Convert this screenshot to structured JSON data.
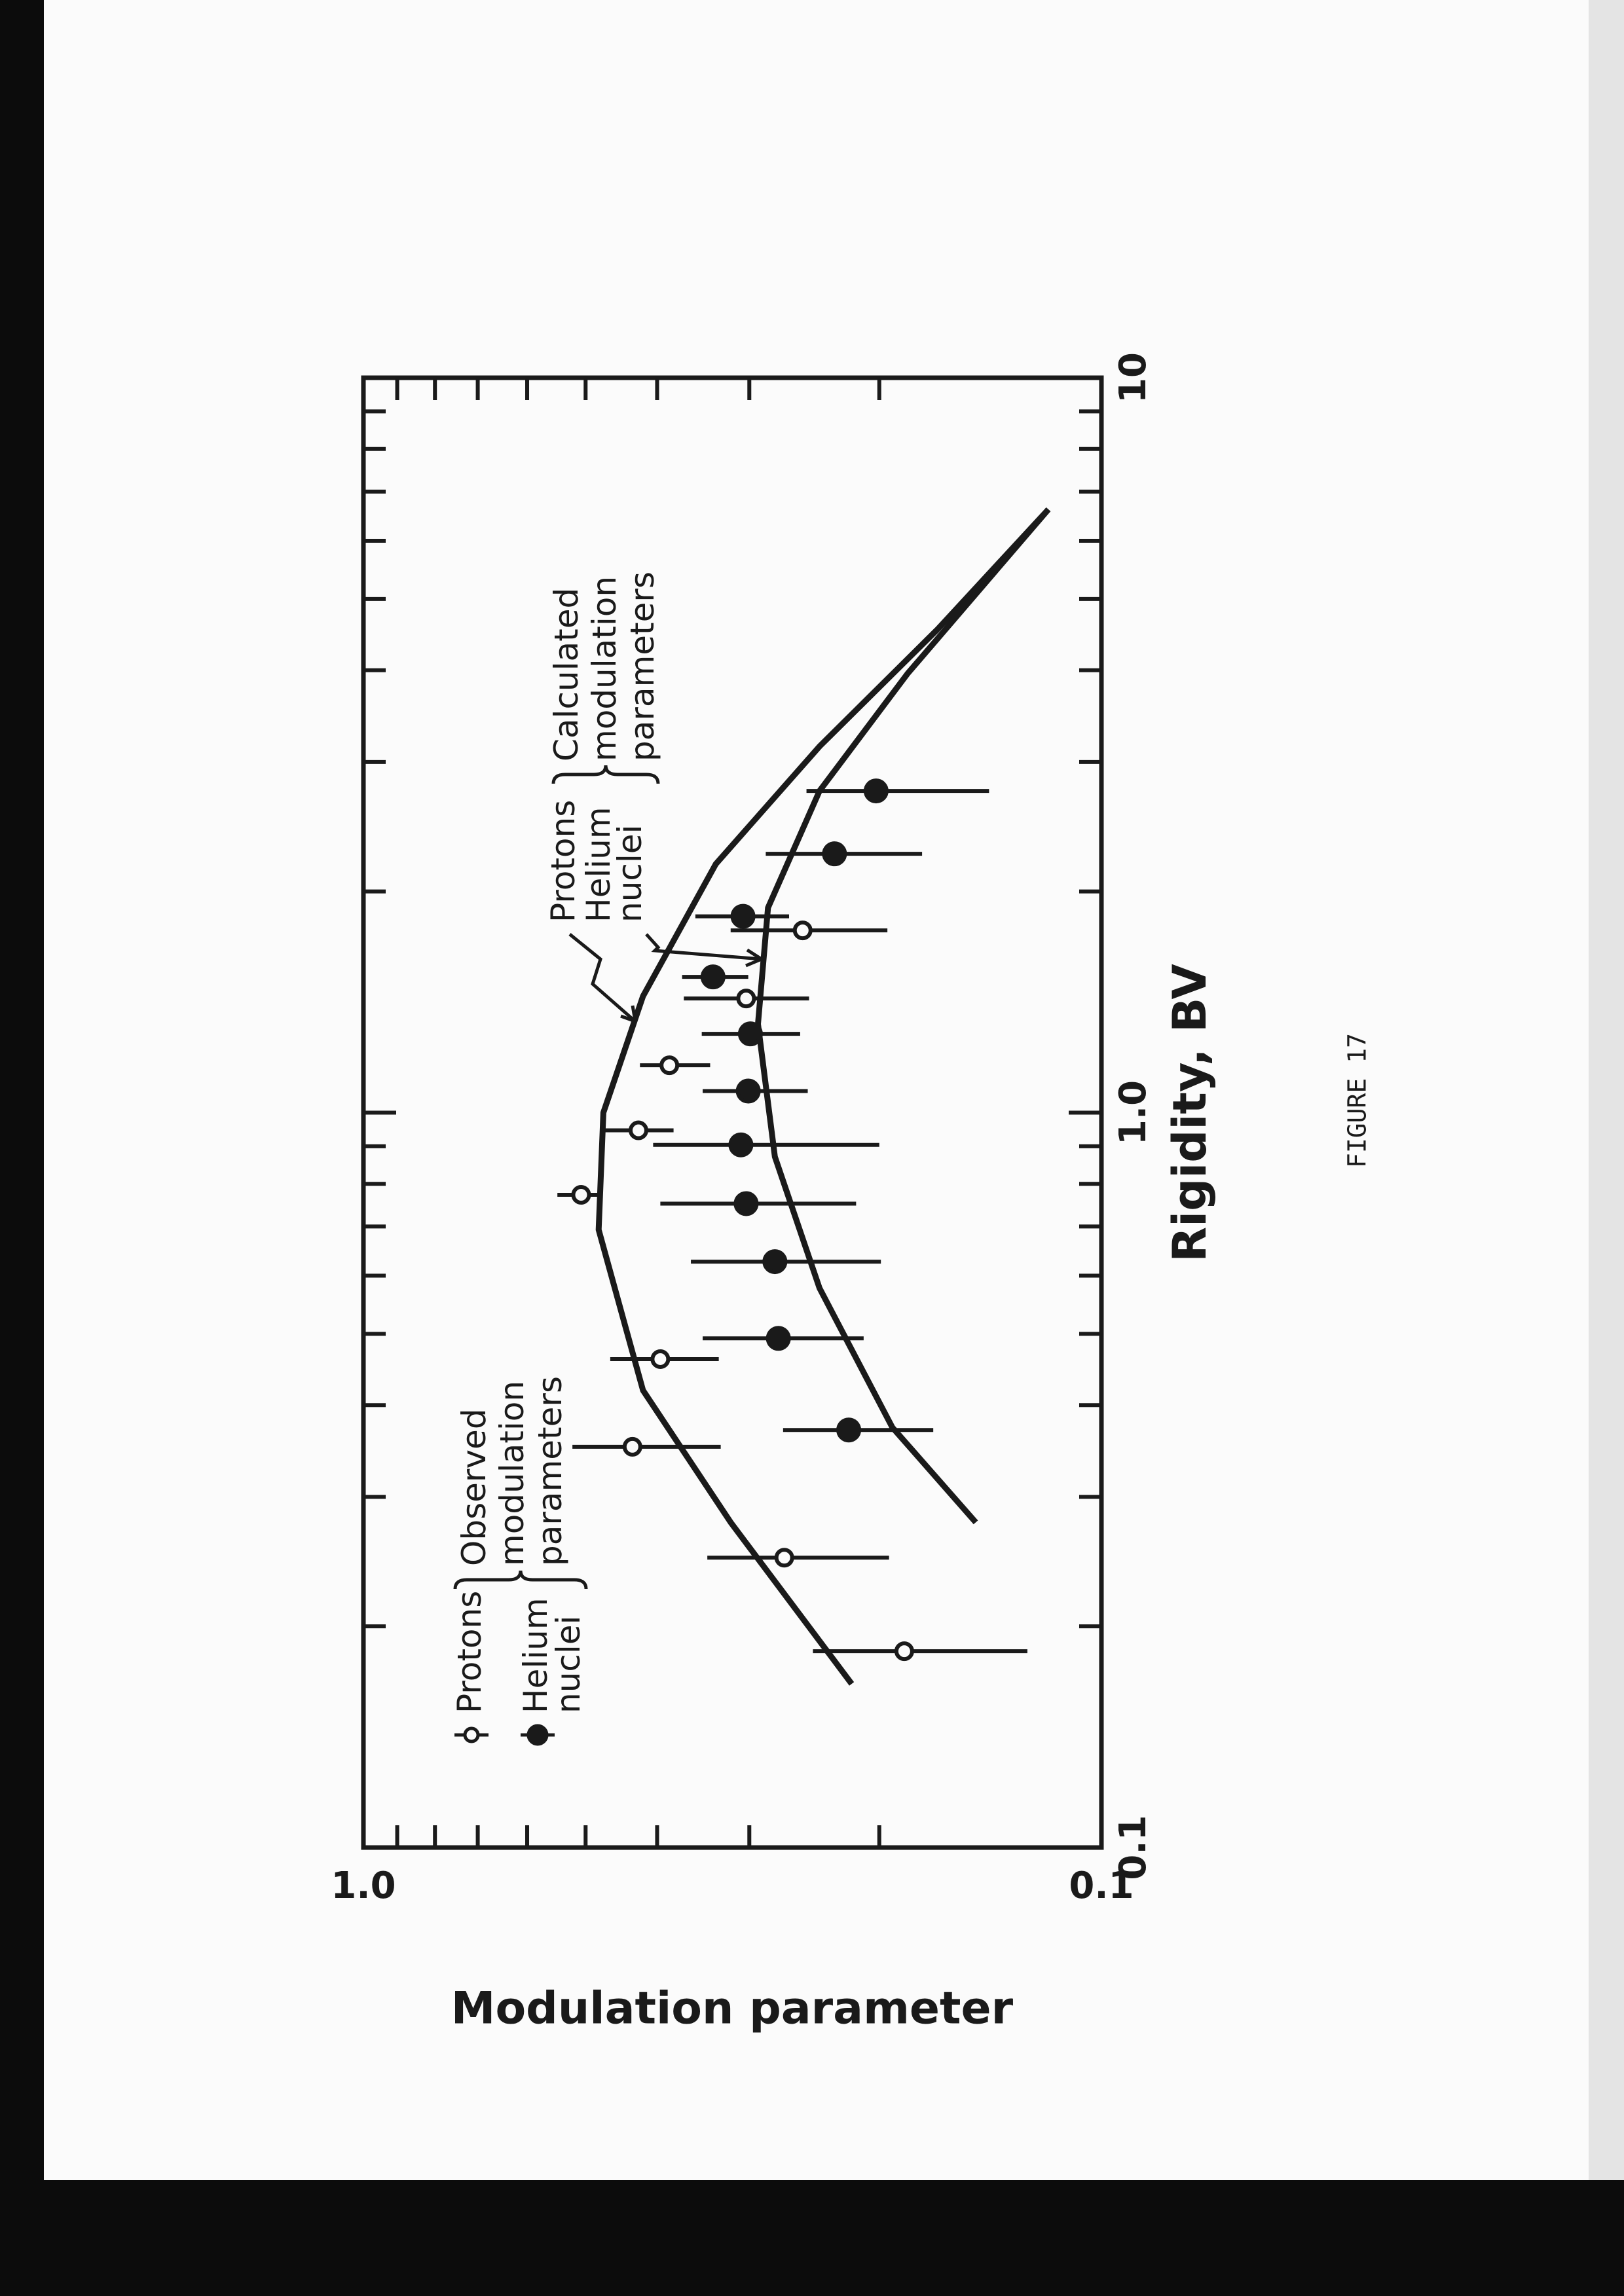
{
  "chart_data": {
    "type": "scatter",
    "x_label": "Rigidity, BV",
    "y_label": "Modulation parameter",
    "xlog": true,
    "ylog": true,
    "xlim": [
      0.1,
      10
    ],
    "ylim": [
      0.1,
      1
    ],
    "xticks": [
      0.1,
      {
        "value": 1,
        "label": "1.0"
      },
      10
    ],
    "yticks": [
      0.1,
      {
        "value": 1,
        "label": "1.0"
      }
    ],
    "x_minor_ticks": [
      0.2,
      0.3,
      0.4,
      0.5,
      0.6,
      0.7,
      0.8,
      0.9,
      2,
      3,
      4,
      5,
      6,
      7,
      8,
      9
    ],
    "y_minor_ticks": [
      0.2,
      0.3,
      0.4,
      0.5,
      0.6,
      0.7,
      0.8,
      0.9
    ],
    "observed_legend_title": "Observed modulation parameters",
    "calculated_legend_title": "Calculated modulation parameters",
    "series": [
      {
        "name": "Protons",
        "marker": "open",
        "color": "#1a1a1a",
        "x": [
          0.185,
          0.248,
          0.351,
          0.462,
          0.773,
          0.946,
          1.16,
          1.43,
          1.77
        ],
        "values": [
          0.185,
          0.269,
          0.432,
          0.396,
          0.507,
          0.424,
          0.385,
          0.303,
          0.254
        ],
        "lower": [
          0.126,
          0.194,
          0.328,
          0.33,
          0.48,
          0.38,
          0.339,
          0.249,
          0.195
        ],
        "upper": [
          0.246,
          0.342,
          0.521,
          0.463,
          0.546,
          0.476,
          0.422,
          0.368,
          0.318
        ]
      },
      {
        "name": "Helium nuclei",
        "marker": "filled",
        "color": "#1a1a1a",
        "x": [
          0.37,
          0.493,
          0.627,
          0.752,
          0.904,
          1.07,
          1.28,
          1.53,
          1.85,
          2.25,
          2.74
        ],
        "values": [
          0.22,
          0.274,
          0.277,
          0.303,
          0.308,
          0.301,
          0.299,
          0.336,
          0.306,
          0.23,
          0.202
        ],
        "lower": [
          0.169,
          0.21,
          0.199,
          0.215,
          0.2,
          0.25,
          0.256,
          0.301,
          0.265,
          0.175,
          0.142
        ],
        "upper": [
          0.27,
          0.347,
          0.36,
          0.396,
          0.405,
          0.347,
          0.348,
          0.37,
          0.355,
          0.285,
          0.251
        ]
      }
    ],
    "curves": [
      {
        "name": "Protons",
        "color": "#1a1a1a",
        "x": [
          0.167,
          0.277,
          0.419,
          0.693,
          1.0,
          1.44,
          2.18,
          3.15,
          4.54,
          6.62
        ],
        "values": [
          0.218,
          0.318,
          0.418,
          0.48,
          0.473,
          0.418,
          0.333,
          0.241,
          0.167,
          0.118
        ]
      },
      {
        "name": "Helium nuclei",
        "color": "#1a1a1a",
        "x": [
          0.277,
          0.373,
          0.577,
          0.871,
          1.32,
          1.9,
          2.74,
          3.96,
          6.62
        ],
        "values": [
          0.148,
          0.192,
          0.241,
          0.277,
          0.292,
          0.283,
          0.241,
          0.183,
          0.118
        ]
      }
    ],
    "caption": "FIGURE 17"
  }
}
